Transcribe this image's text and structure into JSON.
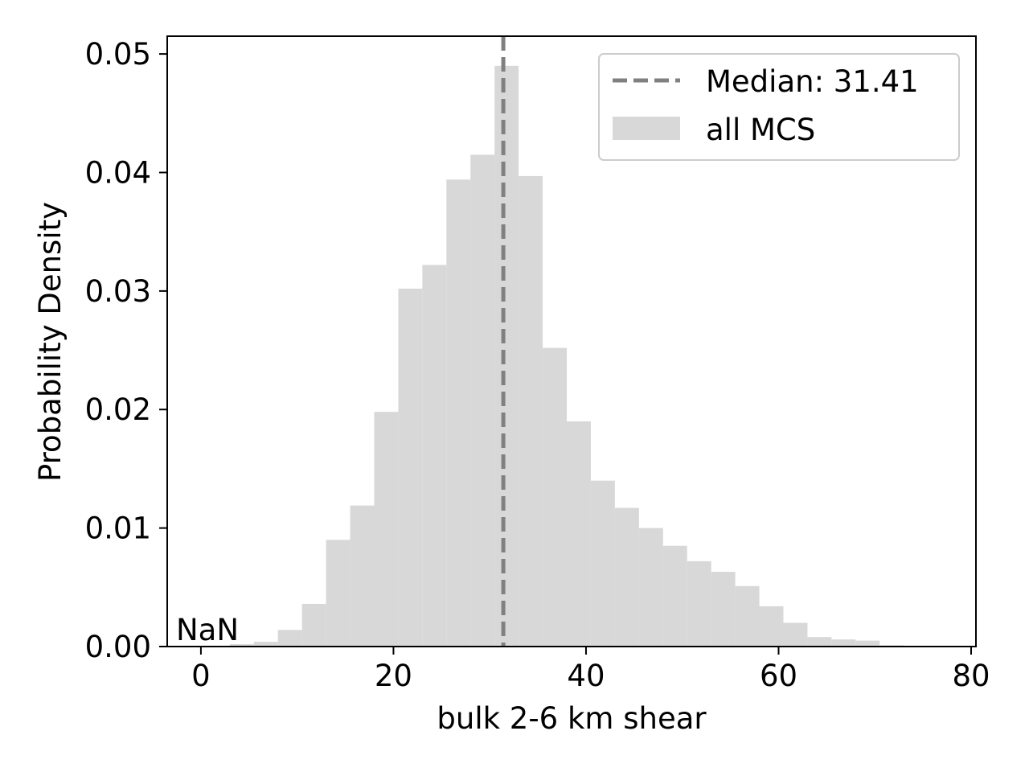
{
  "chart_data": {
    "type": "bar",
    "title": "",
    "xlabel": "bulk 2-6 km shear",
    "ylabel": "Probability Density",
    "xlim": [
      -3.5,
      80.5
    ],
    "ylim": [
      0,
      0.0515
    ],
    "x_ticks": [
      0,
      20,
      40,
      60,
      80
    ],
    "x_tick_labels": [
      "0",
      "20",
      "40",
      "60",
      "80"
    ],
    "y_ticks": [
      0,
      0.01,
      0.02,
      0.03,
      0.04,
      0.05
    ],
    "y_tick_labels": [
      "0.00",
      "0.01",
      "0.02",
      "0.03",
      "0.04",
      "0.05"
    ],
    "grid": false,
    "legend_position": "top-right",
    "annotation": "NaN",
    "median": {
      "value": 31.41,
      "label": "Median: 31.41",
      "color": "#808080",
      "style": "dashed"
    },
    "series": [
      {
        "name": "all MCS",
        "color": "#d8d8d8",
        "bin_edges": [
          0.5,
          3.0,
          5.5,
          8.0,
          10.5,
          13.0,
          15.5,
          18.0,
          20.5,
          23.0,
          25.5,
          28.0,
          30.5,
          33.0,
          35.5,
          38.0,
          40.5,
          43.0,
          45.5,
          48.0,
          50.5,
          53.0,
          55.5,
          58.0,
          60.5,
          63.0,
          65.5,
          68.0,
          70.5,
          73.0,
          75.5,
          78.0
        ],
        "values": [
          0.0,
          0.0002,
          0.0004,
          0.0014,
          0.0036,
          0.009,
          0.0119,
          0.0198,
          0.0302,
          0.0322,
          0.0394,
          0.0415,
          0.049,
          0.0397,
          0.0252,
          0.019,
          0.014,
          0.0117,
          0.01,
          0.0085,
          0.0072,
          0.0063,
          0.0051,
          0.0034,
          0.002,
          0.0008,
          0.0006,
          0.0005,
          0.0001,
          0.0,
          0.0
        ]
      }
    ]
  }
}
